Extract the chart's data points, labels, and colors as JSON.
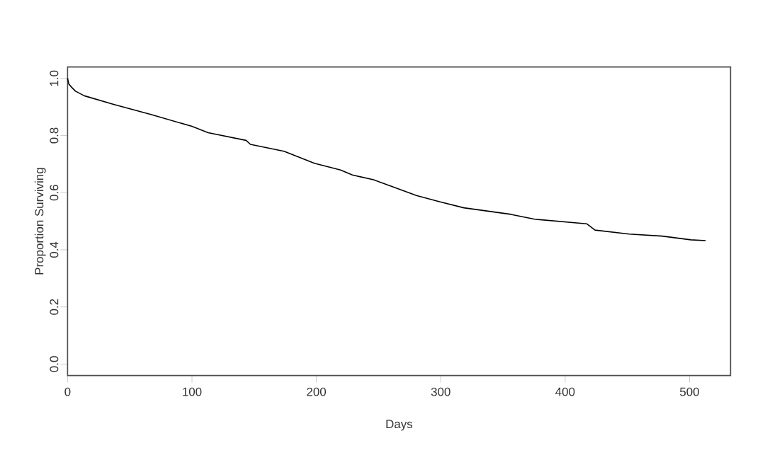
{
  "chart_data": {
    "type": "line",
    "xlabel": "Days",
    "ylabel": "Proportion Surviving",
    "x": [
      0,
      1,
      3,
      6.4,
      13.5,
      37,
      67.5,
      100,
      113,
      143.5,
      147,
      174,
      198.5,
      219.5,
      229,
      246,
      265,
      280.4,
      299.5,
      318.5,
      356.5,
      375.5,
      417.3,
      424,
      451.5,
      478,
      501,
      513
    ],
    "values": [
      1.0,
      0.98,
      0.97,
      0.955,
      0.939,
      0.909,
      0.873,
      0.832,
      0.81,
      0.783,
      0.769,
      0.745,
      0.703,
      0.679,
      0.662,
      0.645,
      0.615,
      0.59,
      0.568,
      0.547,
      0.524,
      0.507,
      0.491,
      0.469,
      0.455,
      0.448,
      0.435,
      0.432
    ],
    "color": "#000000",
    "xlim": [
      0,
      533
    ],
    "ylim": [
      -0.04,
      1.04
    ],
    "xticks": [
      0,
      100,
      200,
      300,
      400,
      500
    ],
    "yticks": [
      {
        "value": 0,
        "label": "0.0"
      },
      {
        "value": 0.2,
        "label": "0.2"
      },
      {
        "value": 0.4,
        "label": "0.4"
      },
      {
        "value": 0.6,
        "label": "0.6"
      },
      {
        "value": 0.8,
        "label": "0.8"
      },
      {
        "value": 1.0,
        "label": "1.0"
      }
    ],
    "grid": false,
    "marker": "none",
    "line_style": "solid"
  }
}
